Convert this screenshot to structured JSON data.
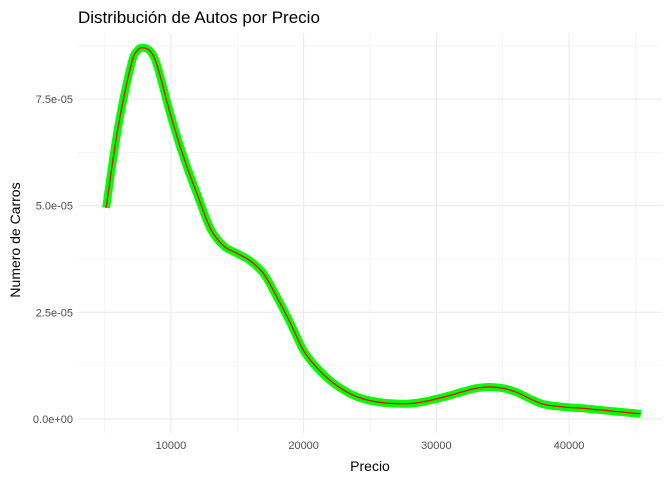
{
  "chart_data": {
    "type": "area",
    "title": "Distribución de Autos por Precio",
    "xlabel": "Precio",
    "ylabel": "Numero de Carros",
    "xlim": [
      3000,
      47000
    ],
    "ylim": [
      -3.3e-06,
      9.05e-05
    ],
    "x_ticks": [
      {
        "value": 10000,
        "label": "10000"
      },
      {
        "value": 20000,
        "label": "20000"
      },
      {
        "value": 30000,
        "label": "30000"
      },
      {
        "value": 40000,
        "label": "40000"
      }
    ],
    "y_ticks": [
      {
        "value": 0,
        "label": "0.0e+00"
      },
      {
        "value": 2.5e-05,
        "label": "2.5e-05"
      },
      {
        "value": 5e-05,
        "label": "5.0e-05"
      },
      {
        "value": 7.5e-05,
        "label": "7.5e-05"
      }
    ],
    "grid": true,
    "fill_color": "#00FF00",
    "line_color": "#FF0000",
    "series": [
      {
        "x": [
          5118,
          6000,
          7000,
          7500,
          8000,
          8500,
          9000,
          10000,
          11000,
          12000,
          13000,
          14000,
          15000,
          16000,
          17000,
          18000,
          19000,
          20000,
          21000,
          22000,
          23000,
          24000,
          25000,
          26000,
          27000,
          28000,
          29000,
          30000,
          31000,
          32000,
          33000,
          34000,
          35000,
          36000,
          37000,
          38000,
          39000,
          40000,
          41000,
          42000,
          43000,
          44000,
          45400
        ],
        "y": [
          4.95e-05,
          6.8e-05,
          8.3e-05,
          8.65e-05,
          8.7e-05,
          8.6e-05,
          8.25e-05,
          7.1e-05,
          6.1e-05,
          5.25e-05,
          4.45e-05,
          4.05e-05,
          3.88e-05,
          3.7e-05,
          3.4e-05,
          2.85e-05,
          2.25e-05,
          1.6e-05,
          1.2e-05,
          9e-06,
          6.8e-06,
          5.2e-06,
          4.3e-06,
          3.8e-06,
          3.6e-06,
          3.6e-06,
          4e-06,
          4.7e-06,
          5.5e-06,
          6.4e-06,
          7.2e-06,
          7.5e-06,
          7.2e-06,
          6.3e-06,
          4.8e-06,
          3.5e-06,
          3e-06,
          2.7e-06,
          2.5e-06,
          2.2e-06,
          1.9e-06,
          1.6e-06,
          1.2e-06
        ]
      }
    ]
  }
}
